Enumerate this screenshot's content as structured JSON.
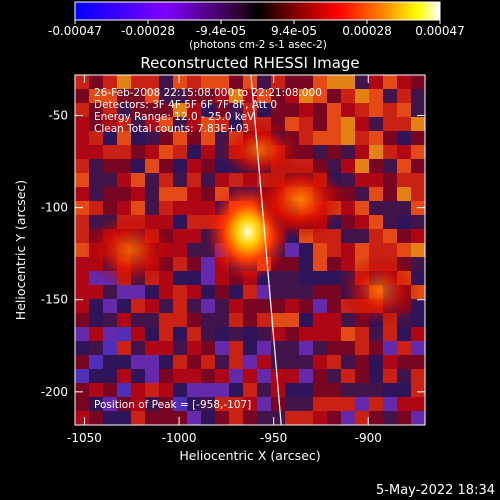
{
  "colorbar": {
    "ticks": [
      "-0.00047",
      "-0.00028",
      "-9.4e-05",
      "9.4e-05",
      "0.00028",
      "0.00047"
    ],
    "unit_label": "(photons cm-2 s-1 asec-2)"
  },
  "plot": {
    "title": "Reconstructed RHESSI Image",
    "xlabel": "Heliocentric X (arcsec)",
    "ylabel": "Heliocentric Y (arcsec)",
    "x_ticks": [
      "-1050",
      "-1000",
      "-950",
      "-900"
    ],
    "y_ticks": [
      "-50",
      "-100",
      "-150",
      "-200"
    ]
  },
  "annotations": {
    "time_range": "26-Feb-2008 22:15:08.000 to 22:21:08.000",
    "detectors": "Detectors: 3F 4F 5F 6F 7F 8F, Att 0",
    "energy": "Energy Range: 12.0 - 25.0 keV",
    "clean": "Clean     Total counts: 7.83E+03",
    "peak": "Position of Peak = [-958,-107]"
  },
  "footer_timestamp": "5-May-2022 18:34",
  "chart_data": {
    "type": "heatmap",
    "title": "Reconstructed RHESSI Image",
    "xlabel": "Heliocentric X (arcsec)",
    "ylabel": "Heliocentric Y (arcsec)",
    "xlim": [
      -1055,
      -870
    ],
    "ylim": [
      -218,
      -28
    ],
    "x_ticks": [
      -1050,
      -1000,
      -950,
      -900
    ],
    "y_ticks": [
      -50,
      -100,
      -150,
      -200
    ],
    "colorbar_range": [
      -0.00047,
      0.00047
    ],
    "peak": {
      "x": -958,
      "y": -107
    },
    "limb_line": [
      [
        -962,
        -28
      ],
      [
        -946,
        -218
      ]
    ]
  },
  "colors": {
    "background": "#000000",
    "foreground": "#ffffff",
    "colormap": [
      "#0000ff",
      "#7f00ff",
      "#300030",
      "#000000",
      "#7f0000",
      "#ff0000",
      "#ff8000",
      "#ffff00",
      "#ffffff"
    ]
  }
}
